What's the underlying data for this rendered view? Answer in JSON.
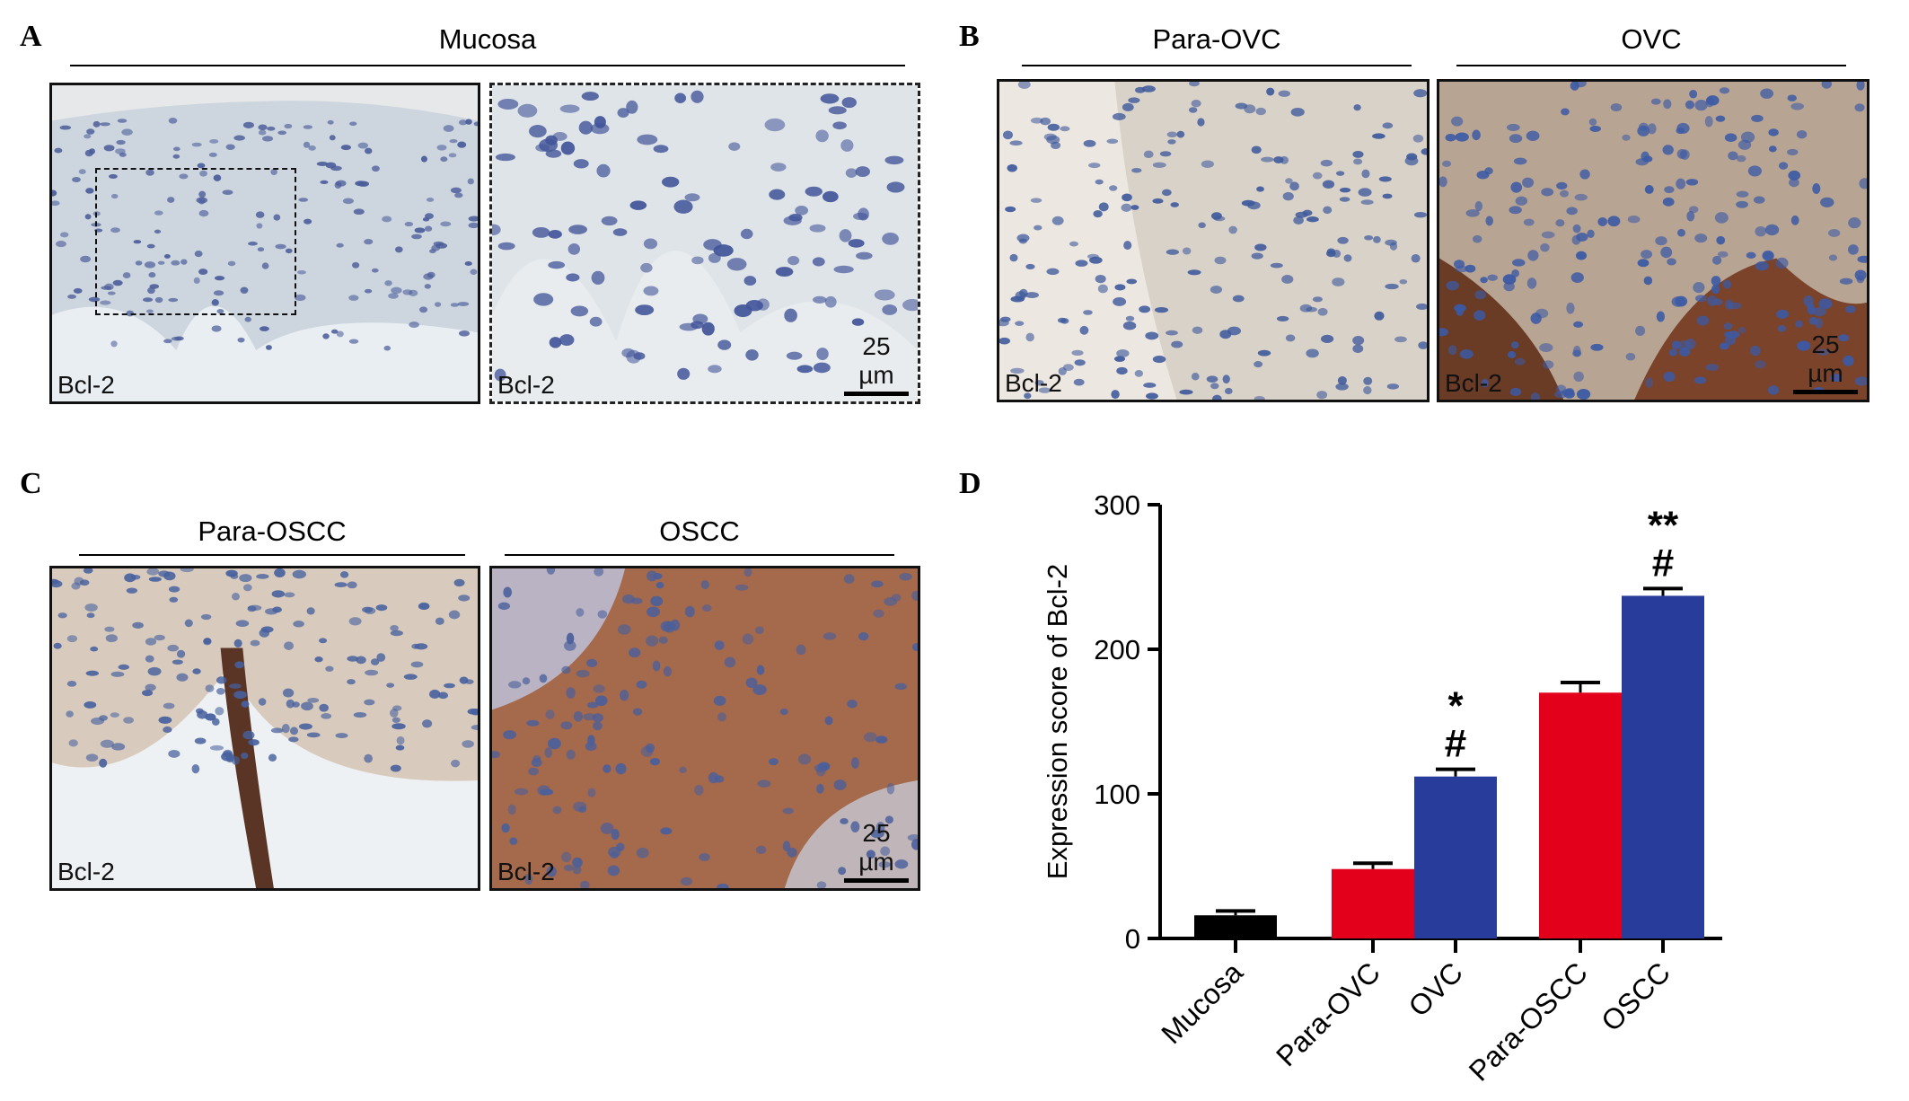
{
  "panels": {
    "a": {
      "letter": "A",
      "header": "Mucosa"
    },
    "b": {
      "letter": "B",
      "header_left": "Para-OVC",
      "header_right": "OVC"
    },
    "c": {
      "letter": "C",
      "header_left": "Para-OSCC",
      "header_right": "OSCC"
    },
    "d": {
      "letter": "D"
    }
  },
  "image_tag": "Bcl-2",
  "scale_label": "25 µm",
  "colors": {
    "hematoxylin": "#3f5fa8",
    "dab_brown": "#8b4a2b",
    "bar_black": "#000000",
    "bar_red": "#e3001b",
    "bar_blue": "#283c9c"
  },
  "chart_data": {
    "type": "bar",
    "ylabel": "Expression score of Bcl-2",
    "ylim": [
      0,
      300
    ],
    "yticks": [
      0,
      100,
      200,
      300
    ],
    "categories": [
      "Mucosa",
      "Para-OVC",
      "OVC",
      "Para-OSCC",
      "OSCC"
    ],
    "values": [
      16,
      48,
      112,
      170,
      237
    ],
    "errors": [
      3,
      4,
      5,
      7,
      5
    ],
    "bar_colors": [
      "#000000",
      "#e3001b",
      "#283c9c",
      "#e3001b",
      "#283c9c"
    ],
    "annotations": [
      {
        "category": "OVC",
        "lines": [
          "*",
          "#"
        ]
      },
      {
        "category": "OSCC",
        "lines": [
          "**",
          "#"
        ]
      }
    ]
  }
}
